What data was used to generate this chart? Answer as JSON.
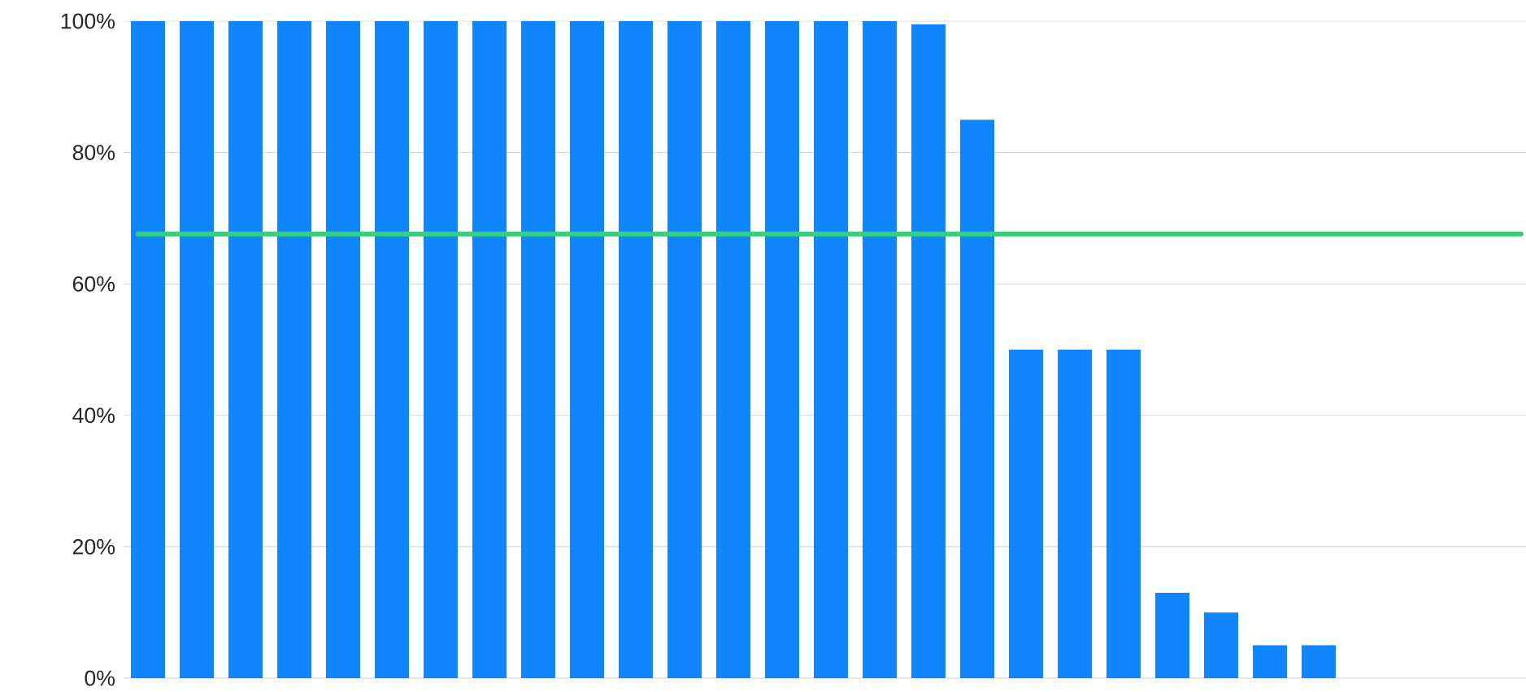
{
  "chart_data": {
    "type": "bar",
    "categories": [
      null,
      null,
      null,
      null,
      null,
      null,
      null,
      null,
      null,
      null,
      null,
      null,
      null,
      null,
      null,
      null,
      null,
      null,
      null,
      null,
      null,
      null,
      null,
      null,
      null,
      null,
      null,
      null,
      null
    ],
    "values": [
      100,
      100,
      100,
      100,
      100,
      100,
      100,
      100,
      100,
      100,
      100,
      100,
      100,
      100,
      100,
      100,
      99.5,
      85,
      50,
      50,
      50,
      13,
      10,
      5,
      5,
      0,
      0,
      0,
      0
    ],
    "color": "#0f86ff",
    "ylim": [
      0,
      100
    ],
    "yticks": [
      {
        "value": 0,
        "label": "0%"
      },
      {
        "value": 20,
        "label": "20%"
      },
      {
        "value": 40,
        "label": "40%"
      },
      {
        "value": 60,
        "label": "60%"
      },
      {
        "value": 80,
        "label": "80%"
      },
      {
        "value": 100,
        "label": "100%"
      }
    ],
    "grid": "y",
    "ref_lines": [
      {
        "axis": "y",
        "value": 67.6,
        "color": "#33d17a"
      }
    ]
  }
}
